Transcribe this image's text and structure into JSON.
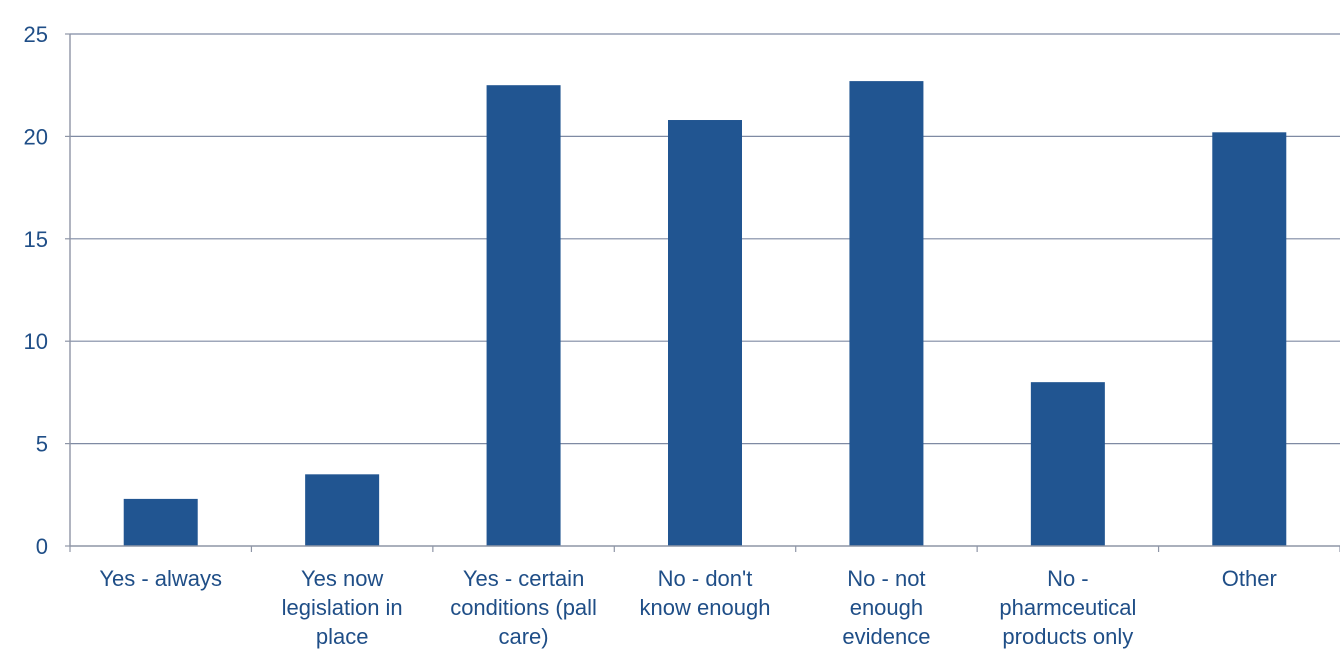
{
  "colors": {
    "bar": "#215591",
    "axis_text": "#1f4e87",
    "gridline": "#7f8aa3",
    "axis_line": "#8e95a6"
  },
  "chart_data": {
    "type": "bar",
    "title": "",
    "xlabel": "",
    "ylabel": "",
    "ylim": [
      0,
      25
    ],
    "yticks": [
      0,
      5,
      10,
      15,
      20,
      25
    ],
    "grid": true,
    "legend": "none",
    "categories": [
      "Yes - always",
      "Yes now legislation in place",
      "Yes - certain conditions (pall care)",
      "No - don't know enough",
      "No - not enough evidence",
      "No - pharmceutical products only",
      "Other"
    ],
    "category_label_lines": [
      [
        "Yes - always"
      ],
      [
        "Yes now",
        "legislation in",
        "place"
      ],
      [
        "Yes - certain",
        "conditions (pall",
        "care)"
      ],
      [
        "No - don't",
        "know enough"
      ],
      [
        "No - not",
        "enough",
        "evidence"
      ],
      [
        "No -",
        "pharmceutical",
        "products only"
      ],
      [
        "Other"
      ]
    ],
    "values": [
      2.3,
      3.5,
      22.5,
      20.8,
      22.7,
      8.0,
      20.2
    ]
  }
}
